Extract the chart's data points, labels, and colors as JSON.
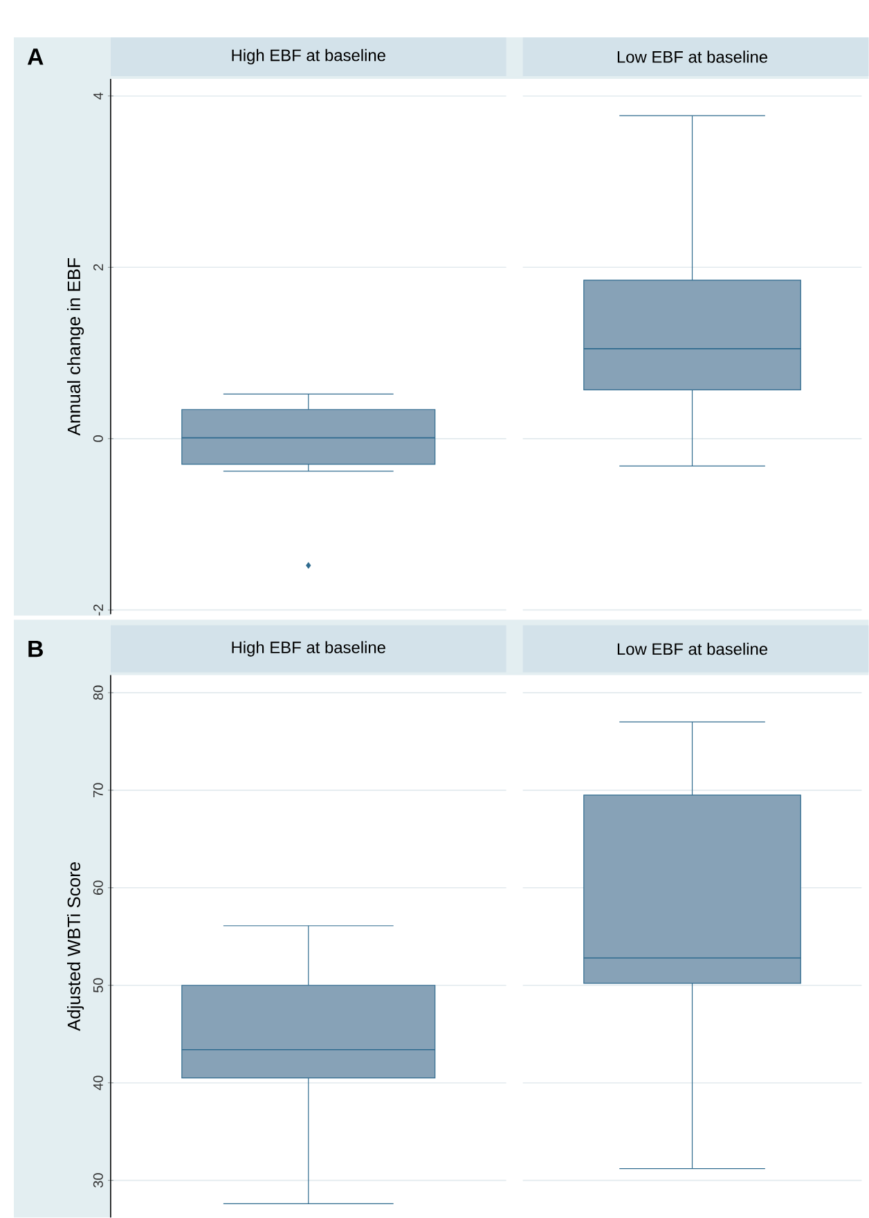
{
  "chart_data": [
    {
      "type": "box",
      "title": "A",
      "ylabel": "Annual change in EBF",
      "categories": [
        "High EBF at baseline",
        "Low EBF at baseline"
      ],
      "color": "#87a2b7",
      "ylim": [
        -2.05,
        4.2
      ],
      "yticks": [
        -2,
        0,
        2,
        4
      ],
      "grid": "y",
      "boxes": [
        {
          "low": -0.38,
          "q1": -0.3,
          "median": 0.01,
          "q3": 0.34,
          "high": 0.52,
          "outliers": [
            -1.48
          ]
        },
        {
          "low": -0.32,
          "q1": 0.57,
          "median": 1.05,
          "q3": 1.85,
          "high": 3.77
        }
      ]
    },
    {
      "type": "box",
      "title": "B",
      "ylabel": "Adjusted WBTi Score",
      "categories": [
        "High EBF at baseline",
        "Low EBF at baseline"
      ],
      "color": "#87a2b7",
      "ylim": [
        26.2,
        81.8
      ],
      "yticks": [
        30,
        40,
        50,
        60,
        70,
        80
      ],
      "grid": "y",
      "boxes": [
        {
          "low": 27.6,
          "q1": 40.5,
          "median": 43.4,
          "q3": 50.0,
          "high": 56.1
        },
        {
          "low": 31.2,
          "q1": 50.2,
          "median": 52.8,
          "q3": 69.5,
          "high": 77.0
        }
      ]
    }
  ]
}
